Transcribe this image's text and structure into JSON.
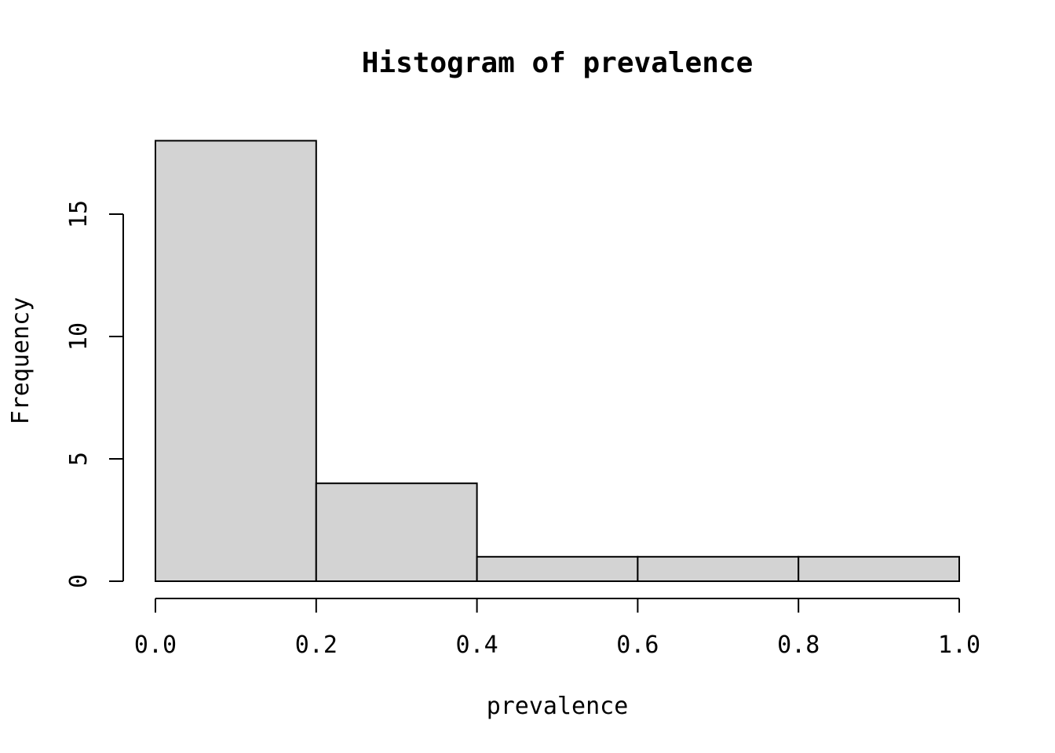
{
  "chart_data": {
    "type": "bar",
    "title": "Histogram of prevalence",
    "xlabel": "prevalence",
    "ylabel": "Frequency",
    "bins": [
      {
        "start": 0.0,
        "end": 0.2,
        "count": 18
      },
      {
        "start": 0.2,
        "end": 0.4,
        "count": 4
      },
      {
        "start": 0.4,
        "end": 0.6,
        "count": 1
      },
      {
        "start": 0.6,
        "end": 0.8,
        "count": 1
      },
      {
        "start": 0.8,
        "end": 1.0,
        "count": 1
      }
    ],
    "xlim": [
      0.0,
      1.0
    ],
    "ylim": [
      0,
      18
    ],
    "x_ticks": [
      {
        "value": 0.0,
        "label": "0.0"
      },
      {
        "value": 0.2,
        "label": "0.2"
      },
      {
        "value": 0.4,
        "label": "0.4"
      },
      {
        "value": 0.6,
        "label": "0.6"
      },
      {
        "value": 0.8,
        "label": "0.8"
      },
      {
        "value": 1.0,
        "label": "1.0"
      }
    ],
    "y_ticks": [
      {
        "value": 0,
        "label": "0"
      },
      {
        "value": 5,
        "label": "5"
      },
      {
        "value": 10,
        "label": "10"
      },
      {
        "value": 15,
        "label": "15"
      }
    ],
    "grid": false,
    "colors": {
      "bar_fill": "#d3d3d3",
      "bar_stroke": "#000000"
    }
  }
}
